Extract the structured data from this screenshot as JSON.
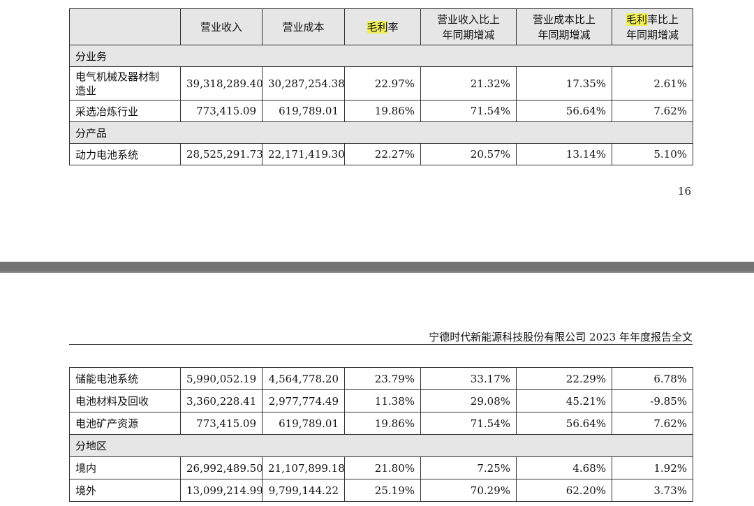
{
  "table_headers": {
    "revenue": "营业收入",
    "cost": "营业成本",
    "gross_margin_hl": "毛利",
    "gross_margin_rest": "率",
    "revenue_yoy_1": "营业收入比上",
    "revenue_yoy_2": "年同期增减",
    "cost_yoy_1": "营业成本比上",
    "cost_yoy_2": "年同期增减",
    "margin_yoy_hl": "毛利",
    "margin_yoy_rest": "率比上",
    "margin_yoy_2": "年同期增减"
  },
  "sections": {
    "by_business": "分业务",
    "by_product": "分产品",
    "by_region": "分地区"
  },
  "rows": {
    "electrical": {
      "label_1": "电气机械及器材制",
      "label_2": "造业",
      "revenue": "39,318,289.40",
      "cost": "30,287,254.38",
      "margin": "22.97%",
      "rev_yoy": "21.32%",
      "cost_yoy": "17.35%",
      "margin_yoy": "2.61%"
    },
    "mining": {
      "label": "采选冶炼行业",
      "revenue": "773,415.09",
      "cost": "619,789.01",
      "margin": "19.86%",
      "rev_yoy": "71.54%",
      "cost_yoy": "56.64%",
      "margin_yoy": "7.62%"
    },
    "power_battery": {
      "label": "动力电池系统",
      "revenue": "28,525,291.73",
      "cost": "22,171,419.30",
      "margin": "22.27%",
      "rev_yoy": "20.57%",
      "cost_yoy": "13.14%",
      "margin_yoy": "5.10%"
    },
    "storage_battery": {
      "label": "储能电池系统",
      "revenue": "5,990,052.19",
      "cost": "4,564,778.20",
      "margin": "23.79%",
      "rev_yoy": "33.17%",
      "cost_yoy": "22.29%",
      "margin_yoy": "6.78%"
    },
    "battery_materials": {
      "label": "电池材料及回收",
      "revenue": "3,360,228.41",
      "cost": "2,977,774.49",
      "margin": "11.38%",
      "rev_yoy": "29.08%",
      "cost_yoy": "45.21%",
      "margin_yoy": "-9.85%"
    },
    "battery_minerals": {
      "label": "电池矿产资源",
      "revenue": "773,415.09",
      "cost": "619,789.01",
      "margin": "19.86%",
      "rev_yoy": "71.54%",
      "cost_yoy": "56.64%",
      "margin_yoy": "7.62%"
    },
    "domestic": {
      "label": "境内",
      "revenue": "26,992,489.50",
      "cost": "21,107,899.18",
      "margin": "21.80%",
      "rev_yoy": "7.25%",
      "cost_yoy": "4.68%",
      "margin_yoy": "1.92%"
    },
    "overseas": {
      "label": "境外",
      "revenue": "13,099,214.99",
      "cost": "9,799,144.22",
      "margin": "25.19%",
      "rev_yoy": "70.29%",
      "cost_yoy": "62.20%",
      "margin_yoy": "3.73%"
    }
  },
  "page_number": "16",
  "running_header": "宁德时代新能源科技股份有限公司 2023 年年度报告全文",
  "colors": {
    "highlight": "#f0ef5a",
    "header_fill": "#e6e6e6",
    "divider": "#747474"
  }
}
